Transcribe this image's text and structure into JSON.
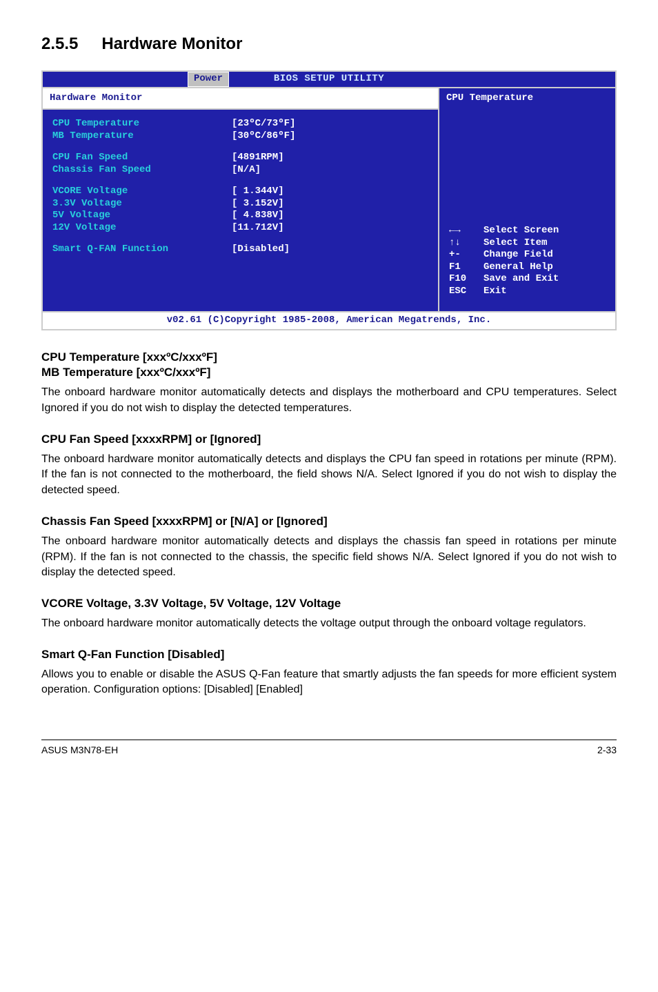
{
  "section": {
    "number": "2.5.5",
    "title": "Hardware Monitor"
  },
  "bios": {
    "topTitle": "BIOS SETUP UTILITY",
    "tab": "Power",
    "leftHeading": "Hardware Monitor",
    "rightHeading": "CPU Temperature",
    "rows": [
      {
        "label": "CPU Temperature",
        "value": "[23ºC/73ºF]"
      },
      {
        "label": "MB Temperature",
        "value": "[30ºC/86ºF]"
      }
    ],
    "rows2": [
      {
        "label": "CPU Fan Speed",
        "value": "[4891RPM]"
      },
      {
        "label": "Chassis Fan Speed",
        "value": "[N/A]"
      }
    ],
    "rows3": [
      {
        "label": "VCORE Voltage",
        "value": "[ 1.344V]"
      },
      {
        "label": "3.3V Voltage",
        "value": "[ 3.152V]"
      },
      {
        "label": "5V Voltage",
        "value": "[ 4.838V]"
      },
      {
        "label": "12V Voltage",
        "value": "[11.712V]"
      }
    ],
    "rows4": [
      {
        "label": "Smart Q-FAN Function",
        "value": "[Disabled]"
      }
    ],
    "nav": [
      {
        "key": "←→",
        "text": "Select Screen",
        "arrows": "lr"
      },
      {
        "key": "↑↓",
        "text": "Select Item",
        "arrows": "ud"
      },
      {
        "key": "+-",
        "text": "Change Field"
      },
      {
        "key": "F1",
        "text": "General Help"
      },
      {
        "key": "F10",
        "text": "Save and Exit"
      },
      {
        "key": "ESC",
        "text": "Exit"
      }
    ],
    "footer": "v02.61 (C)Copyright 1985-2008, American Megatrends, Inc."
  },
  "blocks": [
    {
      "headLines": [
        "CPU Temperature [xxxºC/xxxºF]",
        "MB Temperature [xxxºC/xxxºF]"
      ],
      "para": "The onboard hardware monitor automatically detects and displays the motherboard and CPU temperatures. Select Ignored if you do not wish to display the detected temperatures."
    },
    {
      "headLines": [
        "CPU Fan Speed [xxxxRPM] or [Ignored]"
      ],
      "para": "The onboard hardware monitor automatically detects and displays the CPU fan speed in rotations per minute (RPM). If the fan is not connected to the motherboard, the field shows N/A. Select Ignored if you do not wish to display the detected speed."
    },
    {
      "headLines": [
        "Chassis Fan Speed [xxxxRPM] or [N/A] or [Ignored]"
      ],
      "para": "The onboard hardware monitor automatically detects and displays the chassis fan speed in rotations per minute (RPM). If the fan is not connected to the chassis, the specific field shows N/A. Select Ignored if you do not wish to display the detected speed."
    },
    {
      "headLines": [
        "VCORE Voltage, 3.3V Voltage, 5V Voltage, 12V Voltage"
      ],
      "para": "The onboard hardware monitor automatically detects the voltage output through the onboard voltage regulators."
    },
    {
      "headLines": [
        "Smart Q-Fan Function [Disabled]"
      ],
      "para": "Allows you to enable or disable the ASUS Q-Fan feature that smartly adjusts the fan speeds for more efficient system operation. Configuration options: [Disabled] [Enabled]"
    }
  ],
  "footer": {
    "left": "ASUS M3N78-EH",
    "right": "2-33"
  }
}
